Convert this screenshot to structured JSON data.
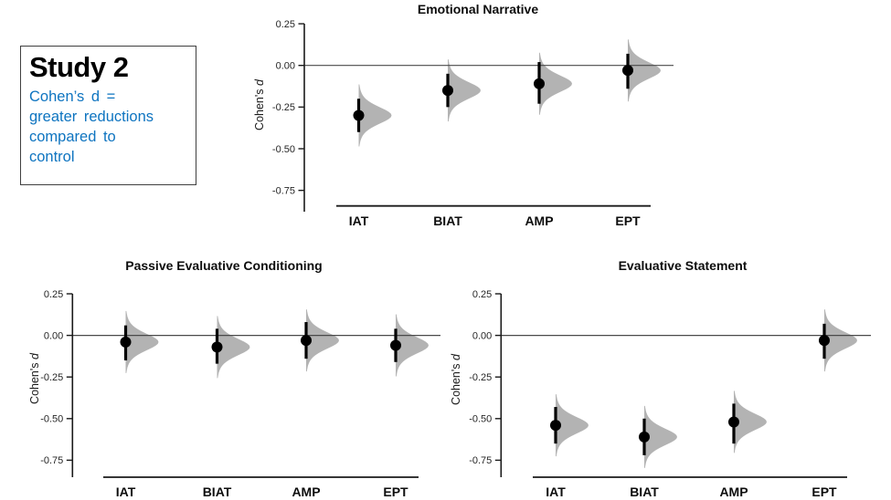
{
  "study_box": {
    "title": "Study 2",
    "note_lines": [
      "Cohen’s d =",
      "greater reductions",
      "compared to",
      "control"
    ],
    "note_color": "#0e74c0"
  },
  "colors": {
    "density_fill": "#b3b3b3",
    "point": "#000000",
    "interval_bar": "#000000",
    "axis": "#1a1a1a",
    "tick_label": "#262626",
    "reference_line": "#4a4a4a",
    "title_text": "#0d0d0d"
  },
  "chart_data": [
    {
      "type": "half-eye interval plot (posterior density + mean point + CI bar)",
      "title": "Emotional Narrative",
      "xlabel": "",
      "ylabel": "Cohen's d",
      "categories": [
        "IAT",
        "BIAT",
        "AMP",
        "EPT"
      ],
      "series": [
        {
          "category": "IAT",
          "mean": -0.3,
          "ci_low": -0.4,
          "ci_high": -0.2
        },
        {
          "category": "BIAT",
          "mean": -0.15,
          "ci_low": -0.25,
          "ci_high": -0.05
        },
        {
          "category": "AMP",
          "mean": -0.11,
          "ci_low": -0.23,
          "ci_high": 0.02
        },
        {
          "category": "EPT",
          "mean": -0.03,
          "ci_low": -0.14,
          "ci_high": 0.07
        }
      ],
      "ytick_labels": [
        "0.25",
        "0.00",
        "-0.25",
        "-0.50",
        "-0.75"
      ],
      "ylim": [
        -0.88,
        0.25
      ],
      "reference_line": 0,
      "grid": false,
      "legend": false
    },
    {
      "type": "half-eye interval plot (posterior density + mean point + CI bar)",
      "title": "Passive Evaluative Conditioning",
      "xlabel": "",
      "ylabel": "Cohen's d",
      "categories": [
        "IAT",
        "BIAT",
        "AMP",
        "EPT"
      ],
      "series": [
        {
          "category": "IAT",
          "mean": -0.04,
          "ci_low": -0.15,
          "ci_high": 0.06
        },
        {
          "category": "BIAT",
          "mean": -0.07,
          "ci_low": -0.17,
          "ci_high": 0.04
        },
        {
          "category": "AMP",
          "mean": -0.03,
          "ci_low": -0.14,
          "ci_high": 0.08
        },
        {
          "category": "EPT",
          "mean": -0.06,
          "ci_low": -0.16,
          "ci_high": 0.04
        }
      ],
      "ytick_labels": [
        "0.25",
        "0.00",
        "-0.25",
        "-0.50",
        "-0.75"
      ],
      "ylim": [
        -0.88,
        0.25
      ],
      "reference_line": 0,
      "grid": false,
      "legend": false
    },
    {
      "type": "half-eye interval plot (posterior density + mean point + CI bar)",
      "title": "Evaluative Statement",
      "xlabel": "",
      "ylabel": "Cohen's d",
      "categories": [
        "IAT",
        "BIAT",
        "AMP",
        "EPT"
      ],
      "series": [
        {
          "category": "IAT",
          "mean": -0.54,
          "ci_low": -0.65,
          "ci_high": -0.43
        },
        {
          "category": "BIAT",
          "mean": -0.61,
          "ci_low": -0.72,
          "ci_high": -0.5
        },
        {
          "category": "AMP",
          "mean": -0.52,
          "ci_low": -0.65,
          "ci_high": -0.41
        },
        {
          "category": "EPT",
          "mean": -0.03,
          "ci_low": -0.14,
          "ci_high": 0.07
        }
      ],
      "ytick_labels": [
        "0.25",
        "0.00",
        "-0.25",
        "-0.50",
        "-0.75"
      ],
      "ylim": [
        -0.88,
        0.25
      ],
      "reference_line": 0,
      "grid": false,
      "legend": false
    }
  ]
}
